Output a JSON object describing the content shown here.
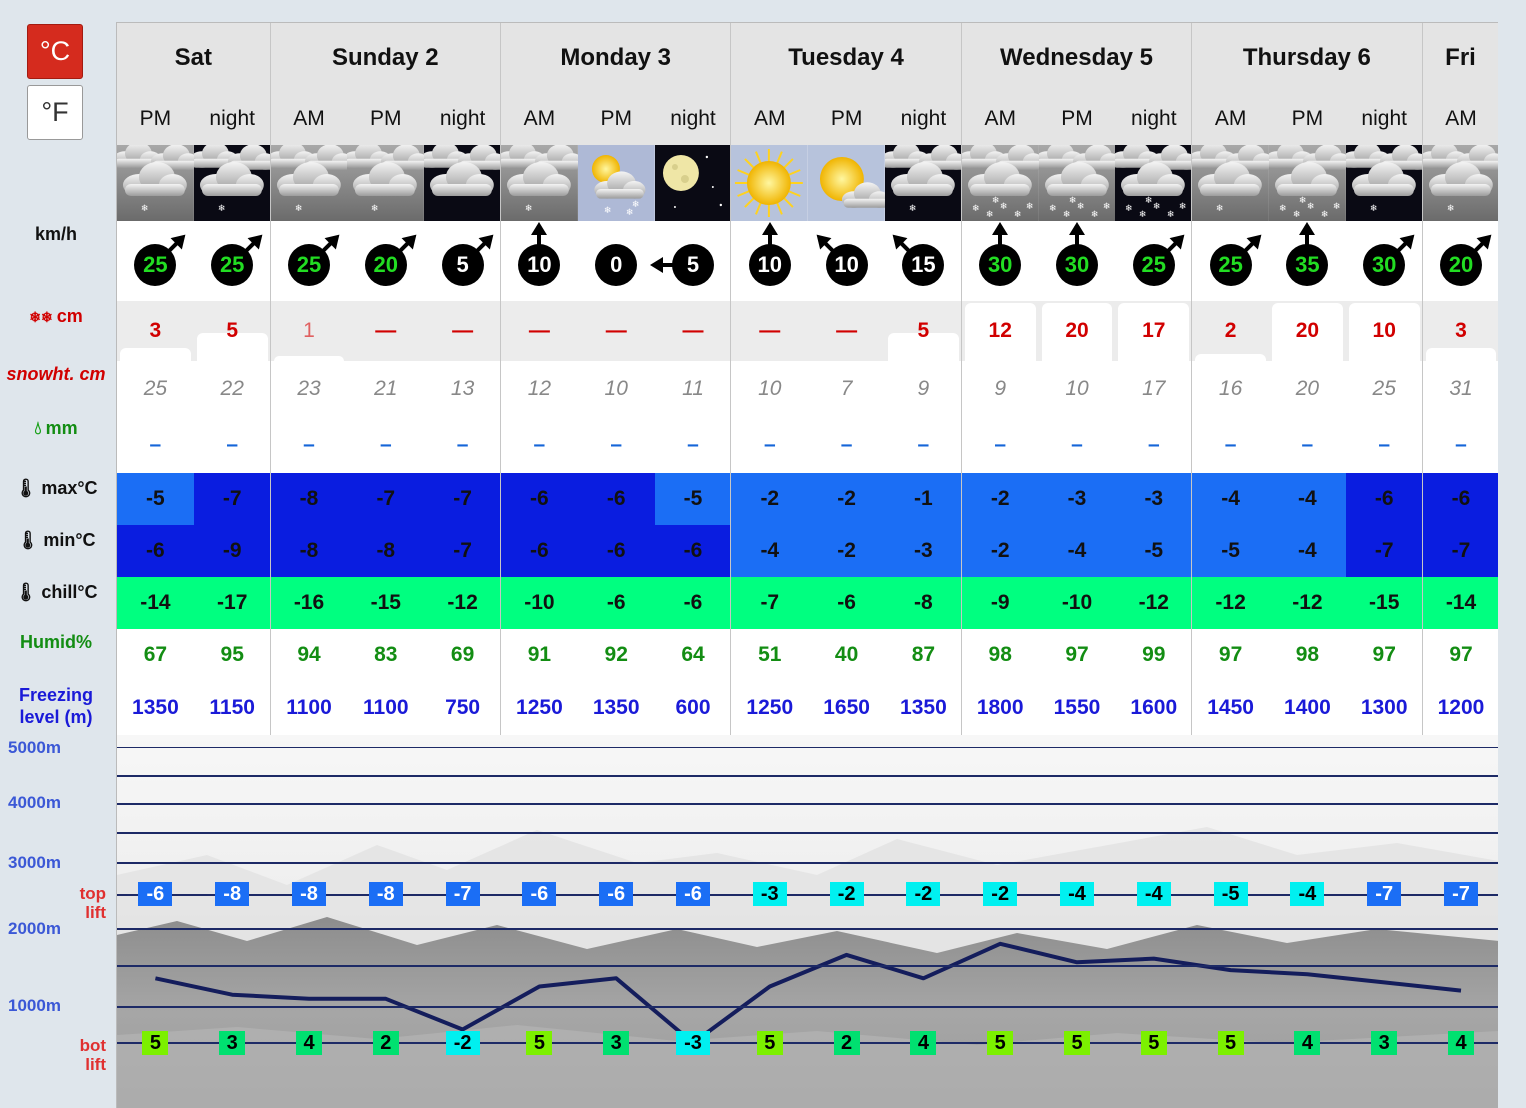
{
  "units": {
    "celsius": "°C",
    "fahrenheit": "°F"
  },
  "labels": {
    "wind": "km/h",
    "snow": "cm",
    "snowht": "snowht. cm",
    "rain": "mm",
    "max": "max°C",
    "min": "min°C",
    "chill": "chill°C",
    "humid": "Humid%",
    "freezing": "Freezing\nlevel (m)"
  },
  "altitudes": [
    "5000m",
    "4000m",
    "3000m",
    "2000m",
    "1000m"
  ],
  "lift_labels": {
    "top": "top\nlift",
    "bot": "bot\nlift"
  },
  "days": [
    {
      "label": "Sat",
      "span": 2
    },
    {
      "label": "Sunday 2",
      "span": 3
    },
    {
      "label": "Monday 3",
      "span": 3
    },
    {
      "label": "Tuesday 4",
      "span": 3
    },
    {
      "label": "Wednesday 5",
      "span": 3
    },
    {
      "label": "Thursday 6",
      "span": 3
    },
    {
      "label": "Fri",
      "span": 1
    }
  ],
  "periods": [
    {
      "label": "PM",
      "icon": "snow-cloud-icon",
      "night": false,
      "wind": "25",
      "wind_dir": "ne",
      "wind_color": "#22dd22",
      "snow": "3",
      "snow_bar": 0.22,
      "snowht": "25",
      "rain": "–",
      "max": "-5",
      "max_color": "#1b6ef5",
      "min": "-6",
      "min_color": "#0a1de0",
      "chill": "-14",
      "humid": "67",
      "freezing": "1350",
      "top_lift": "-6",
      "top_color": "#1b6ef5",
      "bot_lift": "5",
      "bot_color": "#7cf000"
    },
    {
      "label": "night",
      "icon": "snow-cloud-night-icon",
      "night": true,
      "wind": "25",
      "wind_dir": "ne",
      "wind_color": "#22dd22",
      "snow": "5",
      "snow_bar": 0.48,
      "snowht": "22",
      "rain": "–",
      "max": "-7",
      "max_color": "#0a1de0",
      "min": "-9",
      "min_color": "#0a1de0",
      "chill": "-17",
      "humid": "95",
      "freezing": "1150",
      "top_lift": "-8",
      "top_color": "#1b6ef5",
      "bot_lift": "3",
      "bot_color": "#00e070"
    },
    {
      "label": "AM",
      "icon": "snow-cloud-icon",
      "night": false,
      "wind": "25",
      "wind_dir": "ne",
      "wind_color": "#22dd22",
      "snow": "1",
      "snow_bar": 0.08,
      "snowht": "23",
      "rain": "–",
      "max": "-8",
      "max_color": "#0a1de0",
      "min": "-8",
      "min_color": "#0a1de0",
      "chill": "-16",
      "humid": "94",
      "freezing": "1100",
      "top_lift": "-8",
      "top_color": "#1b6ef5",
      "bot_lift": "4",
      "bot_color": "#00e070"
    },
    {
      "label": "PM",
      "icon": "snow-cloud-icon",
      "night": false,
      "wind": "20",
      "wind_dir": "ne",
      "wind_color": "#22dd22",
      "snow": "—",
      "snow_bar": 0,
      "snowht": "21",
      "rain": "–",
      "max": "-7",
      "max_color": "#0a1de0",
      "min": "-8",
      "min_color": "#0a1de0",
      "chill": "-15",
      "humid": "83",
      "freezing": "1100",
      "top_lift": "-8",
      "top_color": "#1b6ef5",
      "bot_lift": "2",
      "bot_color": "#00e070"
    },
    {
      "label": "night",
      "icon": "cloud-night-icon",
      "night": true,
      "wind": "5",
      "wind_dir": "ne",
      "wind_color": "#ffffff",
      "snow": "—",
      "snow_bar": 0,
      "snowht": "13",
      "rain": "–",
      "max": "-7",
      "max_color": "#0a1de0",
      "min": "-7",
      "min_color": "#0a1de0",
      "chill": "-12",
      "humid": "69",
      "freezing": "750",
      "top_lift": "-7",
      "top_color": "#1b6ef5",
      "bot_lift": "-2",
      "bot_color": "#00f0f0"
    },
    {
      "label": "AM",
      "icon": "snow-cloud-icon",
      "night": false,
      "wind": "10",
      "wind_dir": "n",
      "wind_color": "#ffffff",
      "snow": "—",
      "snow_bar": 0,
      "snowht": "12",
      "rain": "–",
      "max": "-6",
      "max_color": "#0a1de0",
      "min": "-6",
      "min_color": "#0a1de0",
      "chill": "-10",
      "humid": "91",
      "freezing": "1250",
      "top_lift": "-6",
      "top_color": "#1b6ef5",
      "bot_lift": "5",
      "bot_color": "#7cf000"
    },
    {
      "label": "PM",
      "icon": "sun-cloud-snow-icon",
      "night": false,
      "wind": "0",
      "wind_dir": "none",
      "wind_color": "#ffffff",
      "snow": "—",
      "snow_bar": 0,
      "snowht": "10",
      "rain": "–",
      "max": "-6",
      "max_color": "#0a1de0",
      "min": "-6",
      "min_color": "#0a1de0",
      "chill": "-6",
      "humid": "92",
      "freezing": "1350",
      "top_lift": "-6",
      "top_color": "#1b6ef5",
      "bot_lift": "3",
      "bot_color": "#00e070"
    },
    {
      "label": "night",
      "icon": "moon-icon",
      "night": true,
      "wind": "5",
      "wind_dir": "w",
      "wind_color": "#ffffff",
      "snow": "—",
      "snow_bar": 0,
      "snowht": "11",
      "rain": "–",
      "max": "-5",
      "max_color": "#1b6ef5",
      "min": "-6",
      "min_color": "#0a1de0",
      "chill": "-6",
      "humid": "64",
      "freezing": "600",
      "top_lift": "-6",
      "top_color": "#1b6ef5",
      "bot_lift": "-3",
      "bot_color": "#00f0f0"
    },
    {
      "label": "AM",
      "icon": "sun-icon",
      "night": false,
      "wind": "10",
      "wind_dir": "n",
      "wind_color": "#ffffff",
      "snow": "—",
      "snow_bar": 0,
      "snowht": "10",
      "rain": "–",
      "max": "-2",
      "max_color": "#1b6ef5",
      "min": "-4",
      "min_color": "#1b6ef5",
      "chill": "-7",
      "humid": "51",
      "freezing": "1250",
      "top_lift": "-3",
      "top_color": "#00f0f0",
      "bot_lift": "5",
      "bot_color": "#7cf000"
    },
    {
      "label": "PM",
      "icon": "sun-cloud-icon",
      "night": false,
      "wind": "10",
      "wind_dir": "nw",
      "wind_color": "#ffffff",
      "snow": "—",
      "snow_bar": 0,
      "snowht": "7",
      "rain": "–",
      "max": "-2",
      "max_color": "#1b6ef5",
      "min": "-2",
      "min_color": "#1b6ef5",
      "chill": "-6",
      "humid": "40",
      "freezing": "1650",
      "top_lift": "-2",
      "top_color": "#00f0f0",
      "bot_lift": "2",
      "bot_color": "#00e070"
    },
    {
      "label": "night",
      "icon": "snow-cloud-night-icon",
      "night": true,
      "wind": "15",
      "wind_dir": "nw",
      "wind_color": "#ffffff",
      "snow": "5",
      "snow_bar": 0.48,
      "snowht": "9",
      "rain": "–",
      "max": "-1",
      "max_color": "#1b6ef5",
      "min": "-3",
      "min_color": "#1b6ef5",
      "chill": "-8",
      "humid": "87",
      "freezing": "1350",
      "top_lift": "-2",
      "top_color": "#00f0f0",
      "bot_lift": "4",
      "bot_color": "#00e070"
    },
    {
      "label": "AM",
      "icon": "heavy-snow-cloud-icon",
      "night": true,
      "wind": "30",
      "wind_dir": "n",
      "wind_color": "#22dd22",
      "snow": "12",
      "snow_bar": 1,
      "snowht": "9",
      "rain": "–",
      "max": "-2",
      "max_color": "#1b6ef5",
      "min": "-2",
      "min_color": "#1b6ef5",
      "chill": "-9",
      "humid": "98",
      "freezing": "1800",
      "top_lift": "-2",
      "top_color": "#00f0f0",
      "bot_lift": "5",
      "bot_color": "#7cf000"
    },
    {
      "label": "PM",
      "icon": "heavy-snow-cloud-icon",
      "night": true,
      "wind": "30",
      "wind_dir": "n",
      "wind_color": "#22dd22",
      "snow": "20",
      "snow_bar": 1,
      "snowht": "10",
      "rain": "–",
      "max": "-3",
      "max_color": "#1b6ef5",
      "min": "-4",
      "min_color": "#1b6ef5",
      "chill": "-10",
      "humid": "97",
      "freezing": "1550",
      "top_lift": "-4",
      "top_color": "#00f0f0",
      "bot_lift": "5",
      "bot_color": "#7cf000"
    },
    {
      "label": "night",
      "icon": "heavy-snow-cloud-night-icon",
      "night": true,
      "wind": "25",
      "wind_dir": "ne",
      "wind_color": "#22dd22",
      "snow": "17",
      "snow_bar": 1,
      "snowht": "17",
      "rain": "–",
      "max": "-3",
      "max_color": "#1b6ef5",
      "min": "-5",
      "min_color": "#1b6ef5",
      "chill": "-12",
      "humid": "99",
      "freezing": "1600",
      "top_lift": "-4",
      "top_color": "#00f0f0",
      "bot_lift": "5",
      "bot_color": "#7cf000"
    },
    {
      "label": "AM",
      "icon": "snow-cloud-icon",
      "night": false,
      "wind": "25",
      "wind_dir": "ne",
      "wind_color": "#22dd22",
      "snow": "2",
      "snow_bar": 0.12,
      "snowht": "16",
      "rain": "–",
      "max": "-4",
      "max_color": "#1b6ef5",
      "min": "-5",
      "min_color": "#1b6ef5",
      "chill": "-12",
      "humid": "97",
      "freezing": "1450",
      "top_lift": "-5",
      "top_color": "#00f0f0",
      "bot_lift": "5",
      "bot_color": "#7cf000"
    },
    {
      "label": "PM",
      "icon": "heavy-snow-cloud-icon",
      "night": false,
      "wind": "35",
      "wind_dir": "n",
      "wind_color": "#22dd22",
      "snow": "20",
      "snow_bar": 1,
      "snowht": "20",
      "rain": "–",
      "max": "-4",
      "max_color": "#1b6ef5",
      "min": "-4",
      "min_color": "#1b6ef5",
      "chill": "-12",
      "humid": "98",
      "freezing": "1400",
      "top_lift": "-4",
      "top_color": "#00f0f0",
      "bot_lift": "4",
      "bot_color": "#00e070"
    },
    {
      "label": "night",
      "icon": "snow-cloud-night-icon",
      "night": true,
      "wind": "30",
      "wind_dir": "ne",
      "wind_color": "#22dd22",
      "snow": "10",
      "snow_bar": 1,
      "snowht": "25",
      "rain": "–",
      "max": "-6",
      "max_color": "#0a1de0",
      "min": "-7",
      "min_color": "#0a1de0",
      "chill": "-15",
      "humid": "97",
      "freezing": "1300",
      "top_lift": "-7",
      "top_color": "#1b6ef5",
      "bot_lift": "3",
      "bot_color": "#00e070"
    },
    {
      "label": "AM",
      "icon": "snow-cloud-icon",
      "night": false,
      "wind": "20",
      "wind_dir": "ne",
      "wind_color": "#22dd22",
      "snow": "3",
      "snow_bar": 0.22,
      "snowht": "31",
      "rain": "–",
      "max": "-6",
      "max_color": "#0a1de0",
      "min": "-7",
      "min_color": "#0a1de0",
      "chill": "-14",
      "humid": "97",
      "freezing": "1200",
      "top_lift": "-7",
      "top_color": "#1b6ef5",
      "bot_lift": "4",
      "bot_color": "#00e070"
    }
  ],
  "colors": {
    "chill_bg": "#00ff80",
    "freeze_line": "#141d5c",
    "day_bg": "#e4e4e4"
  }
}
